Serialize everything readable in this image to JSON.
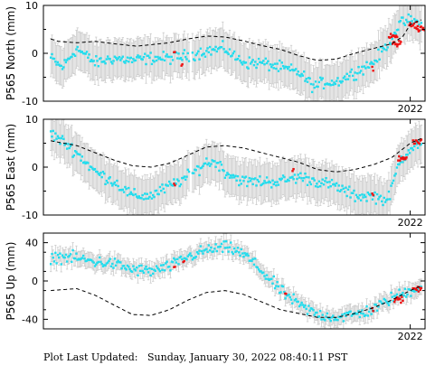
{
  "footer": {
    "label": "Plot Last Updated:",
    "date": "Sunday, January 30, 2022 08:40:11 PST"
  },
  "colors": {
    "data": "#22ddee",
    "recent": "#ee1111",
    "error_bar": "#cccccc",
    "model": "#000000"
  },
  "chart_data": [
    {
      "type": "scatter",
      "ylabel": "P565 North (mm)",
      "ylim": [
        -10,
        10
      ],
      "yticks": [
        -10,
        0,
        10
      ],
      "xlim": [
        2012.1,
        2022.4
      ],
      "xticks": [
        2022
      ],
      "xtick_labels": [
        "2022"
      ],
      "error_bar_mm": 4,
      "series": [
        {
          "values": [
            [
              2012.3,
              -1
            ],
            [
              2012.6,
              -3
            ],
            [
              2013.0,
              1
            ],
            [
              2013.5,
              -2
            ],
            [
              2014.0,
              -1
            ],
            [
              2014.5,
              -1.5
            ],
            [
              2015.0,
              -1
            ],
            [
              2015.5,
              -1
            ],
            [
              2016.0,
              -0.5
            ],
            [
              2016.5,
              0.5
            ],
            [
              2017.0,
              1
            ],
            [
              2017.3,
              -1
            ],
            [
              2017.6,
              -2
            ],
            [
              2018.0,
              -2
            ],
            [
              2018.5,
              -3
            ],
            [
              2019.0,
              -4
            ],
            [
              2019.4,
              -7
            ],
            [
              2019.7,
              -6
            ],
            [
              2020.0,
              -6
            ],
            [
              2020.5,
              -4
            ],
            [
              2021.0,
              -2
            ],
            [
              2021.4,
              2
            ],
            [
              2021.7,
              6
            ],
            [
              2022.0,
              7
            ],
            [
              2022.3,
              6
            ]
          ]
        },
        {
          "values": [
            [
              2015.65,
              0
            ],
            [
              2015.85,
              -2.5
            ],
            [
              2021.0,
              -3
            ],
            [
              2021.55,
              3.5
            ],
            [
              2021.65,
              2
            ],
            [
              2022.1,
              6
            ],
            [
              2022.3,
              5
            ]
          ]
        },
        {
          "values": [
            [
              2012.3,
              3
            ],
            [
              2012.5,
              2.5
            ],
            [
              2013.0,
              2.2
            ],
            [
              2013.5,
              2.5
            ],
            [
              2014.0,
              2
            ],
            [
              2014.6,
              1.5
            ],
            [
              2015.0,
              1.8
            ],
            [
              2015.5,
              2.2
            ],
            [
              2016.0,
              3
            ],
            [
              2016.5,
              3.6
            ],
            [
              2017.0,
              3.4
            ],
            [
              2017.5,
              2.6
            ],
            [
              2018.0,
              1.6
            ],
            [
              2018.5,
              0.8
            ],
            [
              2019.0,
              -0.5
            ],
            [
              2019.5,
              -1.5
            ],
            [
              2020.0,
              -1.2
            ],
            [
              2020.5,
              0
            ],
            [
              2021.0,
              1
            ],
            [
              2021.5,
              2
            ],
            [
              2021.8,
              3.5
            ],
            [
              2022.0,
              6
            ],
            [
              2022.3,
              7
            ]
          ]
        }
      ]
    },
    {
      "type": "scatter",
      "ylabel": "P565 East (mm)",
      "ylim": [
        -10,
        10
      ],
      "yticks": [
        -10,
        0,
        10
      ],
      "xlim": [
        2012.1,
        2022.4
      ],
      "xticks": [
        2022
      ],
      "xtick_labels": [
        "2022"
      ],
      "error_bar_mm": 4,
      "series": [
        {
          "values": [
            [
              2012.3,
              7
            ],
            [
              2012.7,
              5
            ],
            [
              2013.0,
              3
            ],
            [
              2013.5,
              -1
            ],
            [
              2014.0,
              -3
            ],
            [
              2014.5,
              -6
            ],
            [
              2015.0,
              -6
            ],
            [
              2015.5,
              -4
            ],
            [
              2016.0,
              -2
            ],
            [
              2016.5,
              1
            ],
            [
              2016.8,
              1
            ],
            [
              2017.0,
              -1
            ],
            [
              2017.5,
              -3
            ],
            [
              2018.0,
              -3
            ],
            [
              2018.5,
              -3
            ],
            [
              2019.0,
              -2
            ],
            [
              2019.5,
              -3
            ],
            [
              2020.0,
              -4
            ],
            [
              2020.5,
              -6
            ],
            [
              2021.0,
              -6
            ],
            [
              2021.4,
              -7
            ],
            [
              2021.7,
              1
            ],
            [
              2022.0,
              4
            ],
            [
              2022.3,
              5
            ]
          ]
        },
        {
          "values": [
            [
              2015.65,
              -4
            ],
            [
              2018.85,
              -1
            ],
            [
              2021.0,
              -6
            ],
            [
              2021.8,
              2
            ],
            [
              2022.2,
              5
            ]
          ]
        },
        {
          "values": [
            [
              2012.3,
              5.5
            ],
            [
              2013.0,
              4.5
            ],
            [
              2013.5,
              3
            ],
            [
              2014.0,
              1.5
            ],
            [
              2014.5,
              0.3
            ],
            [
              2015.0,
              0
            ],
            [
              2015.5,
              0.8
            ],
            [
              2016.0,
              2.5
            ],
            [
              2016.5,
              4.2
            ],
            [
              2017.0,
              4.5
            ],
            [
              2017.5,
              4
            ],
            [
              2018.0,
              3
            ],
            [
              2018.5,
              2
            ],
            [
              2019.0,
              1
            ],
            [
              2019.5,
              -0.5
            ],
            [
              2020.0,
              -1
            ],
            [
              2020.5,
              -0.5
            ],
            [
              2021.0,
              0.5
            ],
            [
              2021.5,
              2
            ],
            [
              2022.0,
              5
            ],
            [
              2022.3,
              6
            ]
          ]
        }
      ]
    },
    {
      "type": "scatter",
      "ylabel": "P565 Up (mm)",
      "ylim": [
        -50,
        50
      ],
      "yticks": [
        -40,
        0,
        40
      ],
      "xlim": [
        2012.1,
        2022.4
      ],
      "xticks": [
        2022
      ],
      "xtick_labels": [
        "2022"
      ],
      "error_bar_mm": 8,
      "series": [
        {
          "values": [
            [
              2012.3,
              25
            ],
            [
              2012.8,
              25
            ],
            [
              2013.5,
              20
            ],
            [
              2014.0,
              18
            ],
            [
              2014.5,
              12
            ],
            [
              2015.0,
              10
            ],
            [
              2015.5,
              15
            ],
            [
              2016.0,
              25
            ],
            [
              2016.5,
              32
            ],
            [
              2017.0,
              35
            ],
            [
              2017.3,
              32
            ],
            [
              2017.6,
              25
            ],
            [
              2018.0,
              10
            ],
            [
              2018.5,
              -10
            ],
            [
              2019.0,
              -25
            ],
            [
              2019.5,
              -35
            ],
            [
              2020.0,
              -38
            ],
            [
              2020.5,
              -35
            ],
            [
              2021.0,
              -30
            ],
            [
              2021.5,
              -18
            ],
            [
              2022.0,
              -10
            ],
            [
              2022.3,
              -5
            ]
          ]
        },
        {
          "values": [
            [
              2015.65,
              15
            ],
            [
              2015.9,
              20
            ],
            [
              2018.65,
              -15
            ],
            [
              2021.0,
              -28
            ],
            [
              2021.7,
              -20
            ],
            [
              2022.2,
              -8
            ]
          ]
        },
        {
          "values": [
            [
              2012.3,
              -10
            ],
            [
              2013.0,
              -8
            ],
            [
              2013.5,
              -15
            ],
            [
              2014.0,
              -25
            ],
            [
              2014.5,
              -35
            ],
            [
              2015.0,
              -36
            ],
            [
              2015.5,
              -30
            ],
            [
              2016.0,
              -20
            ],
            [
              2016.5,
              -12
            ],
            [
              2017.0,
              -10
            ],
            [
              2017.5,
              -14
            ],
            [
              2018.0,
              -22
            ],
            [
              2018.5,
              -30
            ],
            [
              2019.0,
              -34
            ],
            [
              2019.5,
              -38
            ],
            [
              2020.0,
              -38
            ],
            [
              2020.5,
              -34
            ],
            [
              2021.0,
              -28
            ],
            [
              2021.5,
              -20
            ],
            [
              2022.0,
              -10
            ],
            [
              2022.3,
              -5
            ]
          ]
        }
      ]
    }
  ]
}
